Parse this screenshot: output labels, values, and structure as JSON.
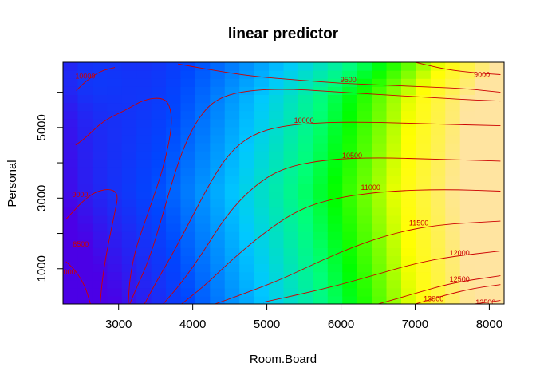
{
  "chart_data": {
    "type": "heatmap",
    "title": "linear predictor",
    "xlabel": "Room.Board",
    "ylabel": "Personal",
    "xlim": [
      2250,
      8200
    ],
    "ylim": [
      0,
      6850
    ],
    "x_ticks": [
      3000,
      4000,
      5000,
      6000,
      7000,
      8000
    ],
    "x_tick_labels": [
      "3000",
      "4000",
      "5000",
      "6000",
      "7000",
      "8000"
    ],
    "y_ticks": [
      1000,
      2000,
      3000,
      4000,
      5000,
      6000
    ],
    "y_tick_labels": [
      "1000",
      "",
      "3000",
      "",
      "5000",
      ""
    ],
    "fill": {
      "scale": "blue-green-yellow",
      "low_color": "#4B00E6",
      "mid_color": "#00FF00",
      "high_color": "#FFE4A0"
    },
    "contour_color": "#cc0000",
    "contours": [
      {
        "level": "9000",
        "points": [
          [
            2420,
            4500
          ],
          [
            2550,
            4700
          ],
          [
            2800,
            5200
          ],
          [
            3100,
            5500
          ],
          [
            3350,
            5800
          ],
          [
            3600,
            5850
          ],
          [
            3700,
            5600
          ],
          [
            3720,
            5000
          ],
          [
            3620,
            4000
          ],
          [
            3500,
            3200
          ],
          [
            3350,
            2300
          ],
          [
            3220,
            1500
          ],
          [
            3150,
            700
          ],
          [
            3130,
            0
          ]
        ],
        "labels": [
          {
            "text": "9000",
            "x": 2480,
            "y": 3100
          }
        ]
      },
      {
        "level": "8500",
        "points": [
          [
            2290,
            2400
          ],
          [
            2600,
            3100
          ],
          [
            2850,
            3280
          ],
          [
            3000,
            3150
          ],
          [
            2950,
            2600
          ],
          [
            2850,
            1600
          ],
          [
            2780,
            700
          ],
          [
            2750,
            0
          ]
        ],
        "labels": [
          {
            "text": "8500",
            "x": 2490,
            "y": 1700
          }
        ]
      },
      {
        "level": "8000",
        "points": [
          [
            2290,
            1200
          ],
          [
            2420,
            950
          ],
          [
            2550,
            500
          ],
          [
            2620,
            0
          ]
        ],
        "labels": [
          {
            "text": "8000",
            "x": 2310,
            "y": 900
          }
        ]
      },
      {
        "level": "10000 (upper-left)",
        "points": [
          [
            2430,
            6050
          ],
          [
            2550,
            6300
          ],
          [
            2750,
            6600
          ],
          [
            2950,
            6700
          ]
        ],
        "labels": [
          {
            "text": "10000",
            "x": 2550,
            "y": 6450
          }
        ]
      },
      {
        "level": "9500 (top)",
        "points": [
          [
            3800,
            6800
          ],
          [
            4200,
            6650
          ],
          [
            4800,
            6450
          ],
          [
            5400,
            6350
          ],
          [
            6000,
            6250
          ],
          [
            6600,
            6200
          ],
          [
            7200,
            6150
          ],
          [
            7700,
            6100
          ],
          [
            8150,
            6000
          ]
        ],
        "labels": [
          {
            "text": "9500",
            "x": 6100,
            "y": 6350
          }
        ]
      },
      {
        "level": "9000 (top-right)",
        "points": [
          [
            7000,
            6850
          ],
          [
            7400,
            6650
          ],
          [
            7800,
            6550
          ],
          [
            8150,
            6500
          ]
        ],
        "labels": [
          {
            "text": "9000",
            "x": 7900,
            "y": 6500
          }
        ]
      },
      {
        "level": "9500 (valley)",
        "points": [
          [
            3150,
            0
          ],
          [
            3250,
            500
          ],
          [
            3400,
            1200
          ],
          [
            3550,
            2200
          ],
          [
            3700,
            3300
          ],
          [
            3850,
            4300
          ],
          [
            4050,
            5200
          ],
          [
            4300,
            5800
          ],
          [
            4700,
            6050
          ],
          [
            5300,
            6100
          ],
          [
            6000,
            6000
          ],
          [
            6800,
            5900
          ],
          [
            7600,
            5800
          ],
          [
            8150,
            5750
          ]
        ]
      },
      {
        "level": "10000",
        "points": [
          [
            3350,
            0
          ],
          [
            3500,
            600
          ],
          [
            3750,
            1500
          ],
          [
            4000,
            2500
          ],
          [
            4250,
            3500
          ],
          [
            4500,
            4300
          ],
          [
            4800,
            4800
          ],
          [
            5200,
            5050
          ],
          [
            5800,
            5150
          ],
          [
            6500,
            5150
          ],
          [
            7200,
            5100
          ],
          [
            8150,
            5050
          ]
        ],
        "labels": [
          {
            "text": "10000",
            "x": 5500,
            "y": 5200
          }
        ]
      },
      {
        "level": "10500",
        "points": [
          [
            3600,
            0
          ],
          [
            3850,
            600
          ],
          [
            4150,
            1500
          ],
          [
            4450,
            2500
          ],
          [
            4800,
            3300
          ],
          [
            5200,
            3850
          ],
          [
            5800,
            4100
          ],
          [
            6500,
            4150
          ],
          [
            7300,
            4100
          ],
          [
            8150,
            4050
          ]
        ],
        "labels": [
          {
            "text": "10500",
            "x": 6150,
            "y": 4200
          }
        ]
      },
      {
        "level": "11000",
        "points": [
          [
            3850,
            0
          ],
          [
            4150,
            500
          ],
          [
            4500,
            1200
          ],
          [
            4950,
            2000
          ],
          [
            5400,
            2650
          ],
          [
            5900,
            3000
          ],
          [
            6600,
            3200
          ],
          [
            7400,
            3250
          ],
          [
            8150,
            3200
          ]
        ],
        "labels": [
          {
            "text": "11000",
            "x": 6400,
            "y": 3300
          }
        ]
      },
      {
        "level": "11500",
        "points": [
          [
            4300,
            0
          ],
          [
            4700,
            300
          ],
          [
            5200,
            700
          ],
          [
            5700,
            1200
          ],
          [
            6200,
            1650
          ],
          [
            6700,
            2000
          ],
          [
            7300,
            2250
          ],
          [
            8150,
            2350
          ]
        ],
        "labels": [
          {
            "text": "11500",
            "x": 7050,
            "y": 2300
          }
        ]
      },
      {
        "level": "12000",
        "points": [
          [
            4950,
            50
          ],
          [
            5500,
            300
          ],
          [
            6000,
            550
          ],
          [
            6500,
            850
          ],
          [
            7000,
            1150
          ],
          [
            7500,
            1350
          ],
          [
            8150,
            1500
          ]
        ],
        "labels": [
          {
            "text": "12000",
            "x": 7600,
            "y": 1450
          }
        ]
      },
      {
        "level": "12500",
        "points": [
          [
            6500,
            0
          ],
          [
            7000,
            300
          ],
          [
            7500,
            600
          ],
          [
            8150,
            800
          ]
        ],
        "labels": [
          {
            "text": "12500",
            "x": 7600,
            "y": 700
          }
        ]
      },
      {
        "level": "13000",
        "points": [
          [
            7000,
            0
          ],
          [
            7400,
            250
          ],
          [
            7800,
            450
          ],
          [
            8150,
            550
          ]
        ],
        "labels": [
          {
            "text": "13000",
            "x": 7250,
            "y": 150
          }
        ]
      },
      {
        "level": "13500",
        "points": [
          [
            7800,
            0
          ],
          [
            8150,
            100
          ]
        ],
        "labels": [
          {
            "text": "13500",
            "x": 7950,
            "y": 50
          }
        ]
      }
    ]
  }
}
